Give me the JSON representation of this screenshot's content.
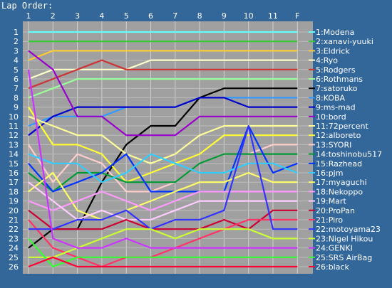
{
  "chart_data": {
    "type": "line",
    "title": "Lap Order:",
    "x_labels": [
      "1",
      "2",
      "3",
      "4",
      "5",
      "6",
      "7",
      "8",
      "9",
      "10",
      "11",
      "F"
    ],
    "y_labels": [
      "1",
      "2",
      "3",
      "4",
      "5",
      "6",
      "7",
      "8",
      "9",
      "10",
      "11",
      "12",
      "13",
      "14",
      "15",
      "16",
      "17",
      "18",
      "19",
      "20",
      "21",
      "22",
      "23",
      "24",
      "25",
      "26"
    ],
    "ylim": [
      1,
      26
    ],
    "y_inverted": true,
    "grid": true,
    "plot_background": "#a0a0a0",
    "series": [
      {
        "name": "1:Modena",
        "color": "#66ffff",
        "values": [
          1,
          1,
          1,
          1,
          1,
          1,
          1,
          1,
          1,
          1,
          1,
          1
        ]
      },
      {
        "name": "2:xanavi-yuuki",
        "color": "#33cc33",
        "values": [
          2,
          2,
          2,
          2,
          2,
          2,
          2,
          2,
          2,
          2,
          2,
          2
        ]
      },
      {
        "name": "3:Eldrick",
        "color": "#ffcc33",
        "values": [
          4,
          3,
          3,
          3,
          3,
          3,
          3,
          3,
          3,
          3,
          3,
          3
        ]
      },
      {
        "name": "4:Ryo",
        "color": "#ffffcc",
        "values": [
          6,
          5,
          5,
          5,
          5,
          4,
          4,
          4,
          4,
          4,
          4,
          4
        ]
      },
      {
        "name": "5:Rodgers",
        "color": "#cc3333",
        "values": [
          7,
          6,
          5,
          4,
          5,
          5,
          5,
          5,
          5,
          5,
          5,
          5
        ]
      },
      {
        "name": "6:Rothmans",
        "color": "#99ff99",
        "values": [
          8,
          7,
          6,
          6,
          6,
          6,
          6,
          6,
          6,
          6,
          6,
          6
        ]
      },
      {
        "name": "7:satoruko",
        "color": "#000000",
        "values": [
          24,
          22,
          22,
          17,
          13,
          11,
          11,
          8,
          7,
          7,
          7,
          7
        ]
      },
      {
        "name": "8:KOBA",
        "color": "#3399ff",
        "values": [
          11,
          10,
          10,
          10,
          9,
          9,
          9,
          8,
          8,
          8,
          8,
          8
        ]
      },
      {
        "name": "9:ms-mad",
        "color": "#0000cc",
        "values": [
          12,
          10,
          9,
          9,
          9,
          9,
          9,
          8,
          8,
          9,
          9,
          9
        ]
      },
      {
        "name": "10:bord",
        "color": "#9900cc",
        "values": [
          3,
          5,
          10,
          10,
          12,
          12,
          12,
          10,
          10,
          10,
          10,
          10
        ]
      },
      {
        "name": "11:72percent",
        "color": "#ffff99",
        "values": [
          10,
          11,
          12,
          12,
          14,
          15,
          14,
          12,
          11,
          11,
          11,
          11
        ]
      },
      {
        "name": "12:alboreto",
        "color": "#ffff33",
        "values": [
          9,
          13,
          13,
          14,
          17,
          16,
          15,
          14,
          12,
          12,
          12,
          12
        ]
      },
      {
        "name": "13:SYORI",
        "color": "#ffcccc",
        "values": [
          13,
          17,
          14,
          15,
          18,
          18,
          17,
          15,
          14,
          14,
          13,
          13
        ]
      },
      {
        "name": "14:toshinobu517",
        "color": "#009933",
        "values": [
          16,
          18,
          16,
          16,
          17,
          17,
          17,
          15,
          14,
          14,
          14,
          14
        ]
      },
      {
        "name": "15:Razhead",
        "color": "#0033ff",
        "values": [
          15,
          18,
          17,
          16,
          14,
          18,
          18,
          18,
          18,
          11,
          16,
          15
        ]
      },
      {
        "name": "16:pjm",
        "color": "#33ccff",
        "values": [
          14,
          15,
          15,
          17,
          16,
          14,
          15,
          16,
          16,
          15,
          15,
          16
        ]
      },
      {
        "name": "17:myaguchi",
        "color": "#ffff66",
        "values": [
          18,
          16,
          20,
          21,
          20,
          19,
          18,
          17,
          17,
          16,
          17,
          17
        ]
      },
      {
        "name": "18:Nekoppo",
        "color": "#ff99ff",
        "values": [
          19,
          20,
          19,
          18,
          19,
          20,
          19,
          18,
          18,
          18,
          18,
          18
        ]
      },
      {
        "name": "19:Mart",
        "color": "#ffccff",
        "values": [
          17,
          19,
          21,
          20,
          21,
          21,
          20,
          19,
          19,
          19,
          19,
          19
        ]
      },
      {
        "name": "20:ProPan",
        "color": "#cc0033",
        "values": [
          20,
          22,
          22,
          22,
          21,
          22,
          22,
          22,
          21,
          22,
          20,
          20
        ]
      },
      {
        "name": "21:Piro",
        "color": "#ff3366",
        "values": [
          21,
          24,
          25,
          26,
          25,
          25,
          24,
          23,
          22,
          21,
          21,
          21
        ]
      },
      {
        "name": "22:motoyama23",
        "color": "#3333ff",
        "values": [
          22,
          22,
          21,
          21,
          20,
          22,
          21,
          21,
          20,
          11,
          22,
          22
        ]
      },
      {
        "name": "23:Nigel Hikou",
        "color": "#ccff33",
        "values": [
          25,
          25,
          24,
          23,
          22,
          22,
          23,
          22,
          22,
          22,
          23,
          23
        ]
      },
      {
        "name": "24:GENKI",
        "color": "#cc33ff",
        "values": [
          5,
          23,
          24,
          24,
          23,
          24,
          24,
          24,
          24,
          24,
          24,
          24
        ]
      },
      {
        "name": "25:SRS AirBag",
        "color": "#33ff33",
        "values": [
          23,
          26,
          25,
          25,
          25,
          25,
          25,
          25,
          25,
          25,
          25,
          25
        ]
      },
      {
        "name": "26:black",
        "color": "#ff0033",
        "values": [
          26,
          25,
          26,
          26,
          26,
          26,
          26,
          26,
          26,
          26,
          26,
          26
        ]
      }
    ]
  }
}
